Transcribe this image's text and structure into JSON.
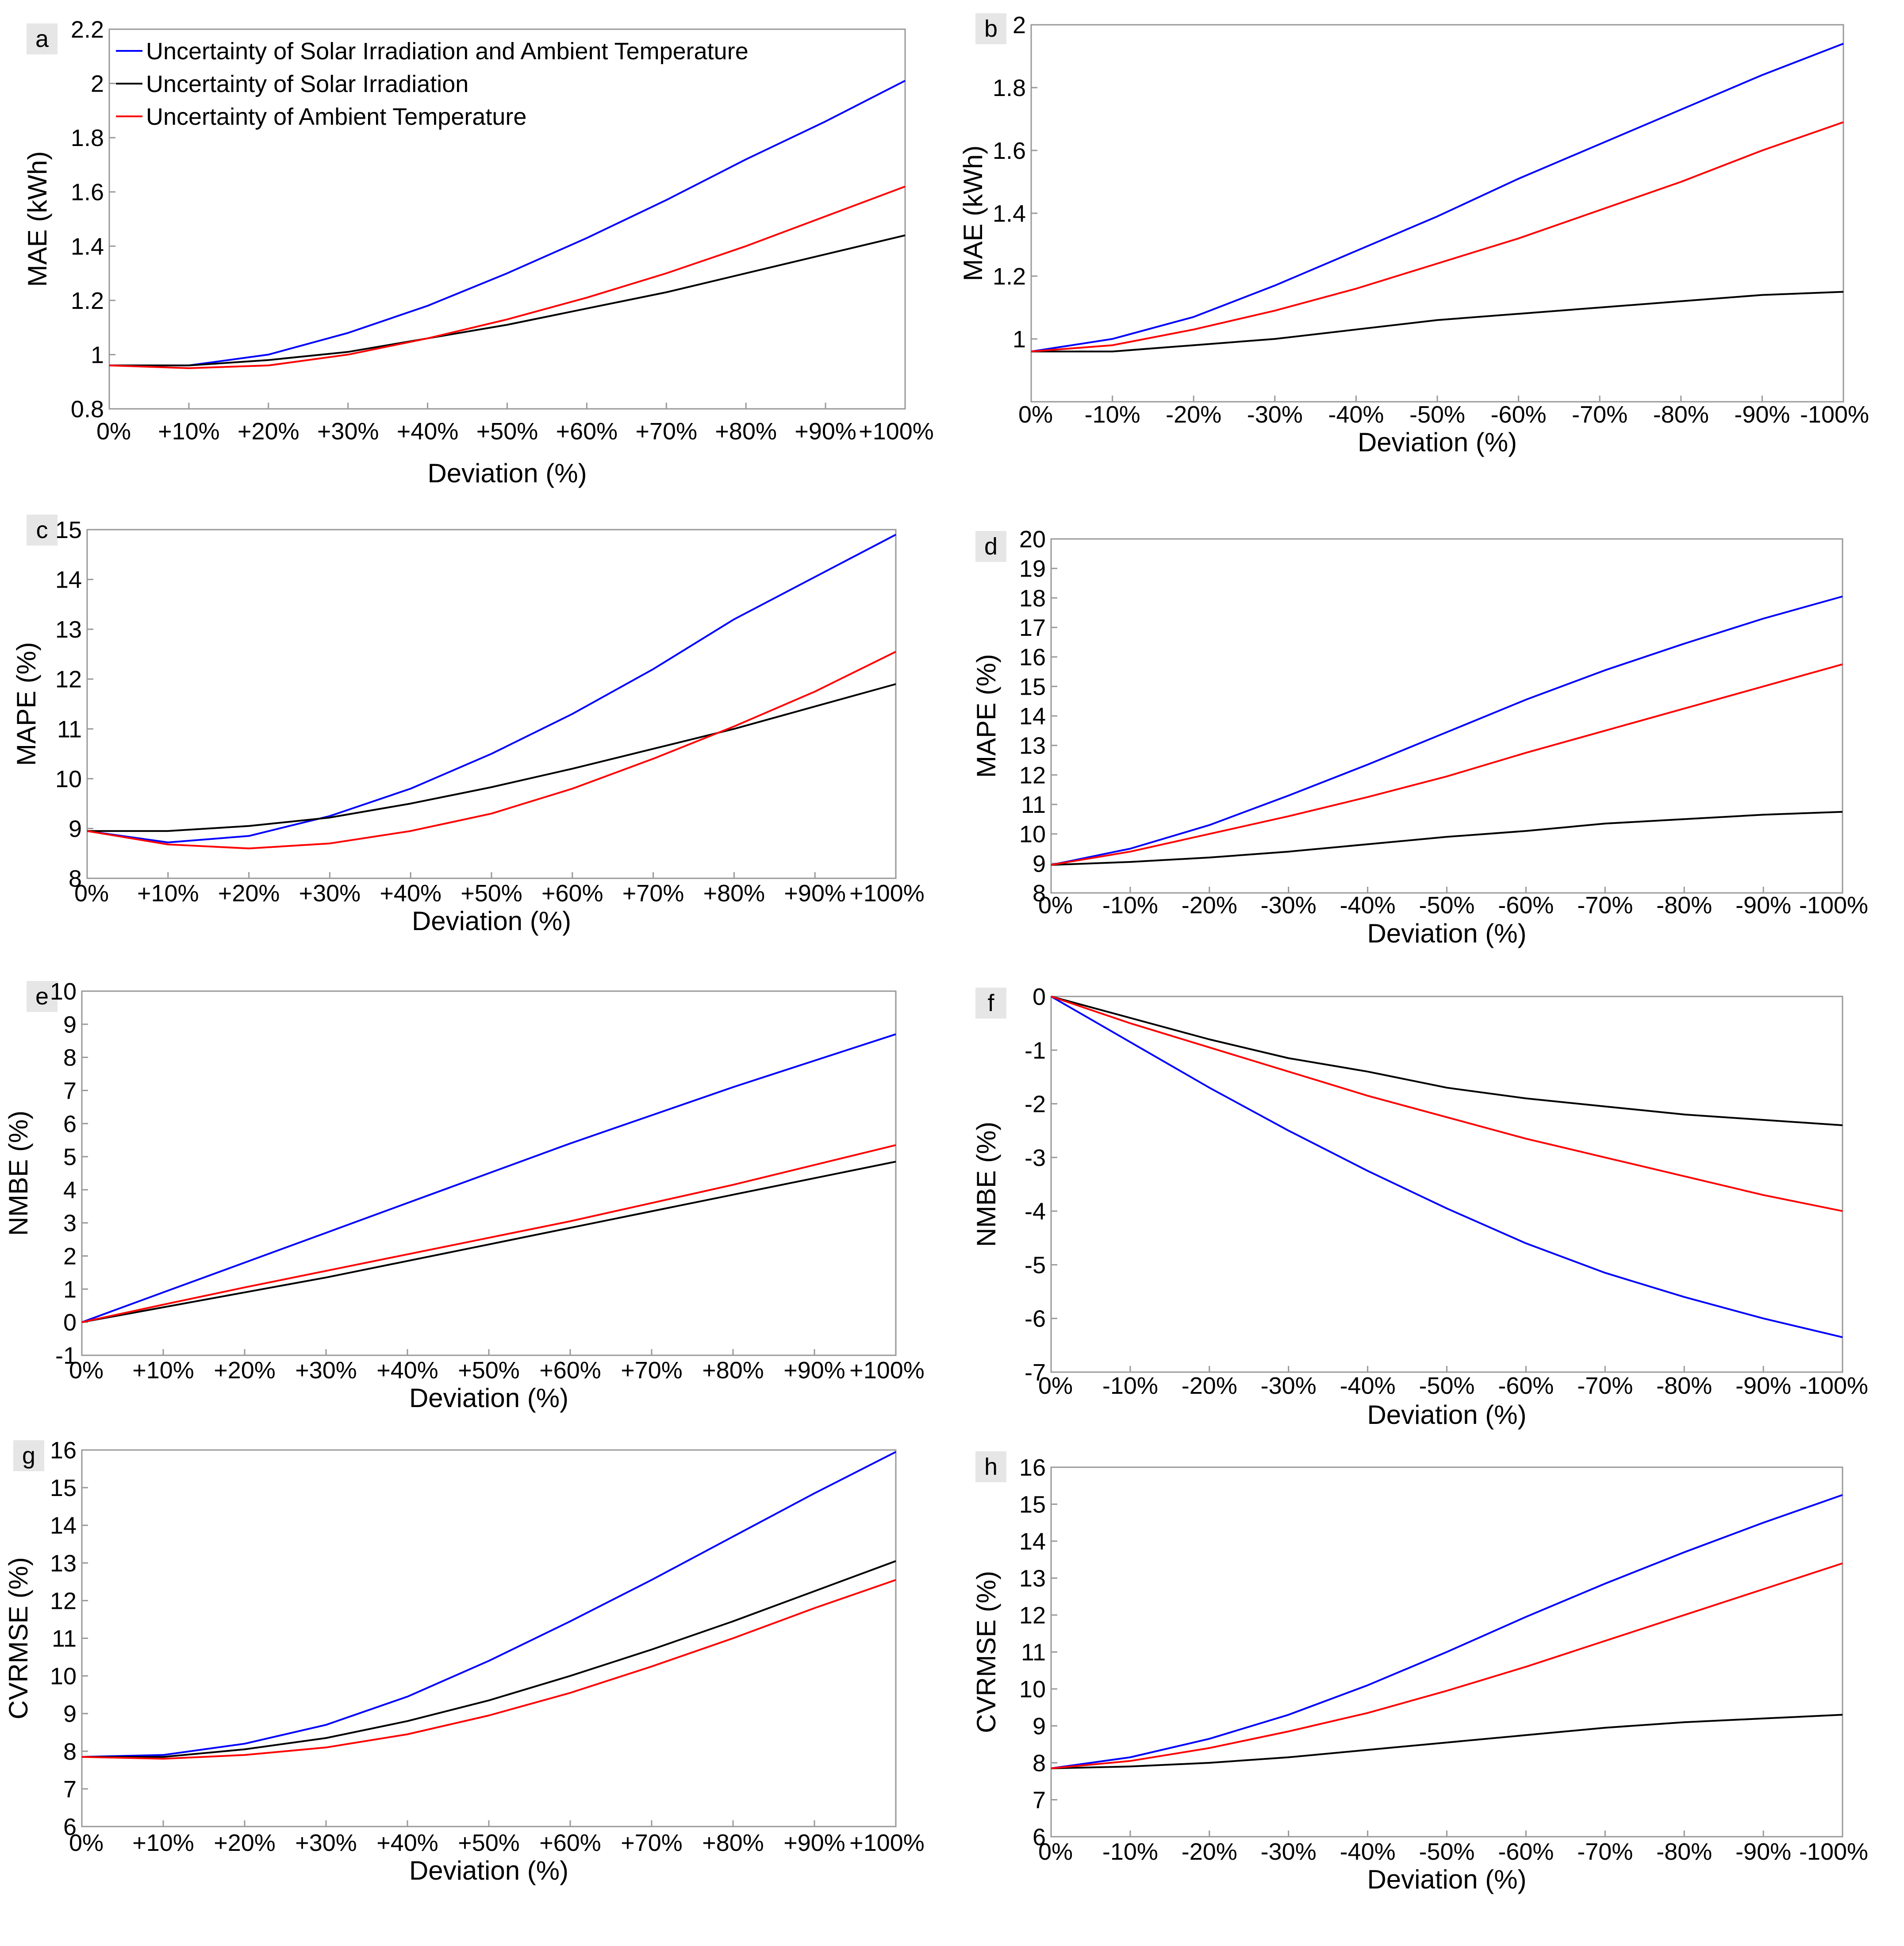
{
  "figure": {
    "colors": {
      "combined": "#0000ff",
      "solar": "#000000",
      "ambient": "#ff0000",
      "panel_tag_bg": "#e6e6e6"
    },
    "legend": [
      {
        "series": "combined",
        "label": "Uncertainty of Solar Irradiation and Ambient Temperature"
      },
      {
        "series": "solar",
        "label": "Uncertainty of Solar Irradiation"
      },
      {
        "series": "ambient",
        "label": "Uncertainty of Ambient Temperature"
      }
    ]
  },
  "chart_data": [
    {
      "panel": "a",
      "type": "line",
      "xlabel": "Deviation (%)",
      "ylabel": "MAE (kWh)",
      "categories": [
        "0%",
        "+10%",
        "+20%",
        "+30%",
        "+40%",
        "+50%",
        "+60%",
        "+70%",
        "+80%",
        "+90%",
        "+100%"
      ],
      "ylim": [
        0.8,
        2.2
      ],
      "yticks": [
        "0.8",
        "1",
        "1.2",
        "1.4",
        "1.6",
        "1.8",
        "2",
        "2.2"
      ],
      "grid": false,
      "legend_position": "top-left",
      "series": [
        {
          "key": "combined",
          "name": "Uncertainty of Solar Irradiation and Ambient Temperature",
          "values": [
            0.96,
            0.96,
            1.0,
            1.08,
            1.18,
            1.3,
            1.43,
            1.57,
            1.72,
            1.86,
            2.01
          ]
        },
        {
          "key": "solar",
          "name": "Uncertainty of Solar Irradiation",
          "values": [
            0.96,
            0.96,
            0.98,
            1.01,
            1.06,
            1.11,
            1.17,
            1.23,
            1.3,
            1.37,
            1.44
          ]
        },
        {
          "key": "ambient",
          "name": "Uncertainty of Ambient Temperature",
          "values": [
            0.96,
            0.95,
            0.96,
            1.0,
            1.06,
            1.13,
            1.21,
            1.3,
            1.4,
            1.51,
            1.62
          ]
        }
      ]
    },
    {
      "panel": "b",
      "type": "line",
      "xlabel": "Deviation (%)",
      "ylabel": "MAE (kWh)",
      "categories": [
        "0%",
        "-10%",
        "-20%",
        "-30%",
        "-40%",
        "-50%",
        "-60%",
        "-70%",
        "-80%",
        "-90%",
        "-100%"
      ],
      "ylim": [
        0.8,
        2.0
      ],
      "yticks": [
        "",
        "1",
        "1.2",
        "1.4",
        "1.6",
        "1.8",
        "2"
      ],
      "grid": false,
      "series": [
        {
          "key": "combined",
          "name": "Uncertainty of Solar Irradiation and Ambient Temperature",
          "values": [
            0.96,
            1.0,
            1.07,
            1.17,
            1.28,
            1.39,
            1.51,
            1.62,
            1.73,
            1.84,
            1.94
          ]
        },
        {
          "key": "solar",
          "name": "Uncertainty of Solar Irradiation",
          "values": [
            0.96,
            0.96,
            0.98,
            1.0,
            1.03,
            1.06,
            1.08,
            1.1,
            1.12,
            1.14,
            1.15
          ]
        },
        {
          "key": "ambient",
          "name": "Uncertainty of Ambient Temperature",
          "values": [
            0.96,
            0.98,
            1.03,
            1.09,
            1.16,
            1.24,
            1.32,
            1.41,
            1.5,
            1.6,
            1.69
          ]
        }
      ]
    },
    {
      "panel": "c",
      "type": "line",
      "xlabel": "Deviation (%)",
      "ylabel": "MAPE (%)",
      "categories": [
        "0%",
        "+10%",
        "+20%",
        "+30%",
        "+40%",
        "+50%",
        "+60%",
        "+70%",
        "+80%",
        "+90%",
        "+100%"
      ],
      "ylim": [
        8,
        15
      ],
      "yticks": [
        "8",
        "9",
        "10",
        "11",
        "12",
        "13",
        "14",
        "15"
      ],
      "grid": false,
      "series": [
        {
          "key": "combined",
          "name": "Uncertainty of Solar Irradiation and Ambient Temperature",
          "values": [
            8.95,
            8.72,
            8.85,
            9.25,
            9.8,
            10.5,
            11.3,
            12.2,
            13.2,
            14.05,
            14.9
          ]
        },
        {
          "key": "solar",
          "name": "Uncertainty of Solar Irradiation",
          "values": [
            8.95,
            8.95,
            9.05,
            9.22,
            9.5,
            9.83,
            10.2,
            10.6,
            11.0,
            11.45,
            11.9
          ]
        },
        {
          "key": "ambient",
          "name": "Uncertainty of Ambient Temperature",
          "values": [
            8.95,
            8.68,
            8.6,
            8.7,
            8.95,
            9.3,
            9.8,
            10.4,
            11.05,
            11.75,
            12.55
          ]
        }
      ]
    },
    {
      "panel": "d",
      "type": "line",
      "xlabel": "Deviation (%)",
      "ylabel": "MAPE (%)",
      "categories": [
        "0%",
        "-10%",
        "-20%",
        "-30%",
        "-40%",
        "-50%",
        "-60%",
        "-70%",
        "-80%",
        "-90%",
        "-100%"
      ],
      "ylim": [
        8,
        20
      ],
      "yticks": [
        "8",
        "9",
        "10",
        "11",
        "12",
        "13",
        "14",
        "15",
        "16",
        "17",
        "18",
        "19",
        "20"
      ],
      "grid": false,
      "series": [
        {
          "key": "combined",
          "name": "Uncertainty of Solar Irradiation and Ambient Temperature",
          "values": [
            8.95,
            9.5,
            10.3,
            11.3,
            12.35,
            13.45,
            14.55,
            15.55,
            16.45,
            17.3,
            18.05
          ]
        },
        {
          "key": "solar",
          "name": "Uncertainty of Solar Irradiation",
          "values": [
            8.95,
            9.05,
            9.2,
            9.4,
            9.65,
            9.9,
            10.1,
            10.35,
            10.5,
            10.65,
            10.75
          ]
        },
        {
          "key": "ambient",
          "name": "Uncertainty of Ambient Temperature",
          "values": [
            8.95,
            9.4,
            10.0,
            10.6,
            11.25,
            11.95,
            12.75,
            13.5,
            14.25,
            15.0,
            15.75
          ]
        }
      ]
    },
    {
      "panel": "e",
      "type": "line",
      "xlabel": "Deviation (%)",
      "ylabel": "NMBE (%)",
      "categories": [
        "0%",
        "+10%",
        "+20%",
        "+30%",
        "+40%",
        "+50%",
        "+60%",
        "+70%",
        "+80%",
        "+90%",
        "+100%"
      ],
      "ylim": [
        -1,
        10
      ],
      "yticks": [
        "-1",
        "0",
        "1",
        "2",
        "3",
        "4",
        "5",
        "6",
        "7",
        "8",
        "9",
        "10"
      ],
      "grid": false,
      "series": [
        {
          "key": "combined",
          "name": "Uncertainty of Solar Irradiation and Ambient Temperature",
          "values": [
            0.0,
            0.9,
            1.8,
            2.7,
            3.6,
            4.5,
            5.4,
            6.25,
            7.1,
            7.9,
            8.7
          ]
        },
        {
          "key": "solar",
          "name": "Uncertainty of Solar Irradiation",
          "values": [
            0.0,
            0.45,
            0.9,
            1.35,
            1.85,
            2.35,
            2.85,
            3.35,
            3.85,
            4.35,
            4.85
          ]
        },
        {
          "key": "ambient",
          "name": "Uncertainty of Ambient Temperature",
          "values": [
            0.0,
            0.53,
            1.05,
            1.55,
            2.05,
            2.55,
            3.05,
            3.6,
            4.15,
            4.75,
            5.35
          ]
        }
      ]
    },
    {
      "panel": "f",
      "type": "line",
      "xlabel": "Deviation (%)",
      "ylabel": "NMBE (%)",
      "categories": [
        "0%",
        "-10%",
        "-20%",
        "-30%",
        "-40%",
        "-50%",
        "-60%",
        "-70%",
        "-80%",
        "-90%",
        "-100%"
      ],
      "ylim": [
        -7,
        0
      ],
      "yticks": [
        "-7",
        "-6",
        "-5",
        "-4",
        "-3",
        "-2",
        "-1",
        "0"
      ],
      "grid": false,
      "series": [
        {
          "key": "combined",
          "name": "Uncertainty of Solar Irradiation and Ambient Temperature",
          "values": [
            0.0,
            -0.85,
            -1.7,
            -2.5,
            -3.25,
            -3.95,
            -4.6,
            -5.15,
            -5.6,
            -6.0,
            -6.35
          ]
        },
        {
          "key": "solar",
          "name": "Uncertainty of Solar Irradiation",
          "values": [
            0.0,
            -0.4,
            -0.8,
            -1.15,
            -1.4,
            -1.7,
            -1.9,
            -2.05,
            -2.2,
            -2.3,
            -2.4
          ]
        },
        {
          "key": "ambient",
          "name": "Uncertainty of Ambient Temperature",
          "values": [
            0.0,
            -0.5,
            -0.95,
            -1.4,
            -1.85,
            -2.25,
            -2.65,
            -3.0,
            -3.35,
            -3.7,
            -4.0
          ]
        }
      ]
    },
    {
      "panel": "g",
      "type": "line",
      "xlabel": "Deviation (%)",
      "ylabel": "CVRMSE (%)",
      "categories": [
        "0%",
        "+10%",
        "+20%",
        "+30%",
        "+40%",
        "+50%",
        "+60%",
        "+70%",
        "+80%",
        "+90%",
        "+100%"
      ],
      "ylim": [
        6,
        16
      ],
      "yticks": [
        "6",
        "7",
        "8",
        "9",
        "10",
        "11",
        "12",
        "13",
        "14",
        "15",
        "16"
      ],
      "grid": false,
      "series": [
        {
          "key": "combined",
          "name": "Uncertainty of Solar Irradiation and Ambient Temperature",
          "values": [
            7.85,
            7.9,
            8.2,
            8.7,
            9.45,
            10.4,
            11.45,
            12.55,
            13.7,
            14.85,
            15.95
          ]
        },
        {
          "key": "solar",
          "name": "Uncertainty of Solar Irradiation",
          "values": [
            7.85,
            7.85,
            8.05,
            8.35,
            8.8,
            9.35,
            10.0,
            10.7,
            11.45,
            12.25,
            13.05
          ]
        },
        {
          "key": "ambient",
          "name": "Uncertainty of Ambient Temperature",
          "values": [
            7.85,
            7.8,
            7.9,
            8.1,
            8.45,
            8.95,
            9.55,
            10.25,
            11.0,
            11.8,
            12.55
          ]
        }
      ]
    },
    {
      "panel": "h",
      "type": "line",
      "xlabel": "Deviation (%)",
      "ylabel": "CVRMSE (%)",
      "categories": [
        "0%",
        "-10%",
        "-20%",
        "-30%",
        "-40%",
        "-50%",
        "-60%",
        "-70%",
        "-80%",
        "-90%",
        "-100%"
      ],
      "ylim": [
        6,
        16
      ],
      "yticks": [
        "6",
        "7",
        "8",
        "9",
        "10",
        "11",
        "12",
        "13",
        "14",
        "15",
        "16"
      ],
      "grid": false,
      "series": [
        {
          "key": "combined",
          "name": "Uncertainty of Solar Irradiation and Ambient Temperature",
          "values": [
            7.85,
            8.15,
            8.65,
            9.3,
            10.1,
            11.0,
            11.95,
            12.85,
            13.7,
            14.5,
            15.25
          ]
        },
        {
          "key": "solar",
          "name": "Uncertainty of Solar Irradiation",
          "values": [
            7.85,
            7.9,
            8.0,
            8.15,
            8.35,
            8.55,
            8.75,
            8.95,
            9.1,
            9.2,
            9.3
          ]
        },
        {
          "key": "ambient",
          "name": "Uncertainty of Ambient Temperature",
          "values": [
            7.85,
            8.05,
            8.4,
            8.85,
            9.35,
            9.95,
            10.6,
            11.3,
            12.0,
            12.7,
            13.4
          ]
        }
      ]
    }
  ]
}
